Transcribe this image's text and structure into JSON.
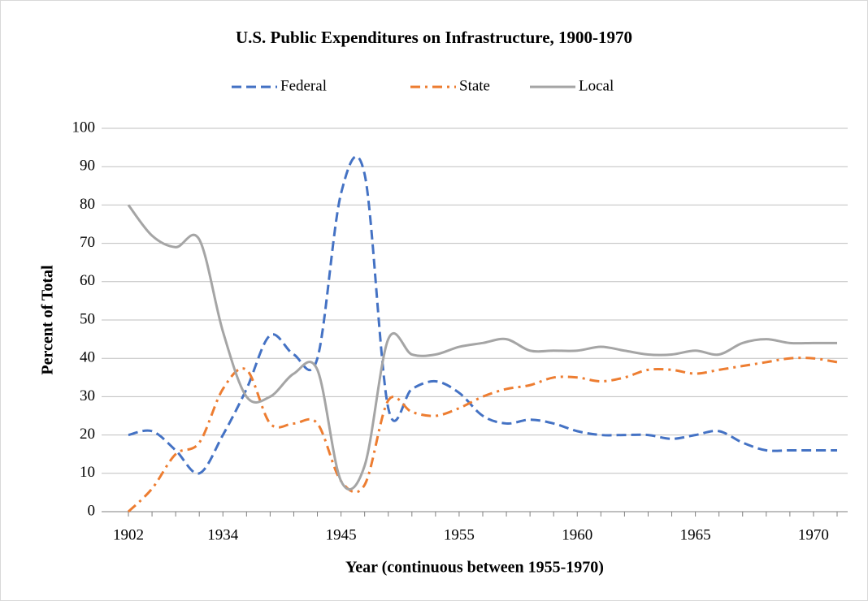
{
  "chart_data": {
    "type": "line",
    "title": "U.S. Public Expenditures on Infrastructure, 1900-1970",
    "x_label": "Year (continuous between 1955-1970)",
    "y_label": "Percent of Total",
    "categories": [
      "1902",
      null,
      null,
      null,
      "1934",
      null,
      null,
      null,
      null,
      "1945",
      null,
      null,
      null,
      null,
      "1955",
      null,
      null,
      null,
      null,
      "1960",
      null,
      null,
      null,
      null,
      "1965",
      null,
      null,
      null,
      null,
      "1970",
      null
    ],
    "series": [
      {
        "name": "Federal",
        "color": "#4472c4",
        "dash": "dashed",
        "values": [
          20,
          21,
          16,
          10,
          20,
          32,
          46,
          41,
          40,
          83,
          88,
          27,
          32,
          34,
          31,
          25,
          23,
          24,
          23,
          21,
          20,
          20,
          20,
          19,
          20,
          21,
          18,
          16,
          16,
          16,
          16
        ]
      },
      {
        "name": "State",
        "color": "#ed7d31",
        "dash": "dashdot",
        "values": [
          0,
          6,
          15,
          18,
          32,
          37,
          23,
          23,
          23,
          8,
          7,
          29,
          26,
          25,
          27,
          30,
          32,
          33,
          35,
          35,
          34,
          35,
          37,
          37,
          36,
          37,
          38,
          39,
          40,
          40,
          39
        ]
      },
      {
        "name": "Local",
        "color": "#a5a5a5",
        "dash": "solid",
        "values": [
          80,
          72,
          69,
          71,
          47,
          30,
          30,
          36,
          37,
          8,
          12,
          45,
          41,
          41,
          43,
          44,
          45,
          42,
          42,
          42,
          43,
          42,
          41,
          41,
          42,
          41,
          44,
          45,
          44,
          44,
          44
        ]
      }
    ],
    "ylim": [
      0,
      100
    ],
    "yticks": [
      0,
      10,
      20,
      30,
      40,
      50,
      60,
      70,
      80,
      90,
      100
    ],
    "grid": true,
    "legend": "top"
  }
}
